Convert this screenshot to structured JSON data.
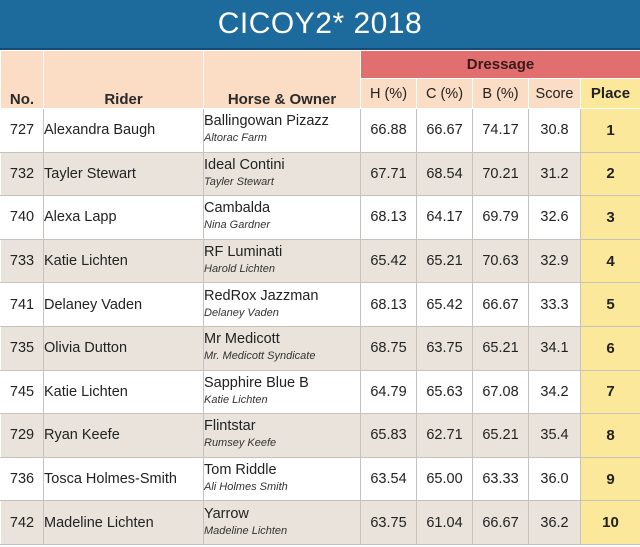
{
  "title": "CICOY2* 2018",
  "headers": {
    "no": "No.",
    "rider": "Rider",
    "horse_owner": "Horse & Owner",
    "dressage": "Dressage",
    "h": "H (%)",
    "c": "C (%)",
    "b": "B (%)",
    "score": "Score",
    "place": "Place"
  },
  "rows": [
    {
      "no": "727",
      "rider": "Alexandra Baugh",
      "horse": "Ballingowan Pizazz",
      "owner": "Altorac Farm",
      "h": "66.88",
      "c": "66.67",
      "b": "74.17",
      "score": "30.8",
      "place": "1"
    },
    {
      "no": "732",
      "rider": "Tayler Stewart",
      "horse": "Ideal Contini",
      "owner": "Tayler Stewart",
      "h": "67.71",
      "c": "68.54",
      "b": "70.21",
      "score": "31.2",
      "place": "2"
    },
    {
      "no": "740",
      "rider": "Alexa Lapp",
      "horse": "Cambalda",
      "owner": "Nina Gardner",
      "h": "68.13",
      "c": "64.17",
      "b": "69.79",
      "score": "32.6",
      "place": "3"
    },
    {
      "no": "733",
      "rider": "Katie Lichten",
      "horse": "RF Luminati",
      "owner": "Harold Lichten",
      "h": "65.42",
      "c": "65.21",
      "b": "70.63",
      "score": "32.9",
      "place": "4"
    },
    {
      "no": "741",
      "rider": "Delaney Vaden",
      "horse": "RedRox Jazzman",
      "owner": "Delaney Vaden",
      "h": "68.13",
      "c": "65.42",
      "b": "66.67",
      "score": "33.3",
      "place": "5"
    },
    {
      "no": "735",
      "rider": "Olivia Dutton",
      "horse": "Mr Medicott",
      "owner": "Mr. Medicott Syndicate",
      "h": "68.75",
      "c": "63.75",
      "b": "65.21",
      "score": "34.1",
      "place": "6"
    },
    {
      "no": "745",
      "rider": "Katie Lichten",
      "horse": "Sapphire Blue B",
      "owner": "Katie Lichten",
      "h": "64.79",
      "c": "65.63",
      "b": "67.08",
      "score": "34.2",
      "place": "7"
    },
    {
      "no": "729",
      "rider": "Ryan Keefe",
      "horse": "Flintstar",
      "owner": "Rumsey Keefe",
      "h": "65.83",
      "c": "62.71",
      "b": "65.21",
      "score": "35.4",
      "place": "8"
    },
    {
      "no": "736",
      "rider": "Tosca Holmes-Smith",
      "horse": "Tom Riddle",
      "owner": "Ali Holmes Smith",
      "h": "63.54",
      "c": "65.00",
      "b": "63.33",
      "score": "36.0",
      "place": "9"
    },
    {
      "no": "742",
      "rider": "Madeline Lichten",
      "horse": "Yarrow",
      "owner": "Madeline Lichten",
      "h": "63.75",
      "c": "61.04",
      "b": "66.67",
      "score": "36.2",
      "place": "10"
    }
  ],
  "colors": {
    "title_bar": "#1d6a9c",
    "header_bg": "#fbdcc4",
    "dressage_bg": "#e16f6f",
    "place_bg": "#fbe89b",
    "row_alt_bg": "#e9e3db"
  }
}
